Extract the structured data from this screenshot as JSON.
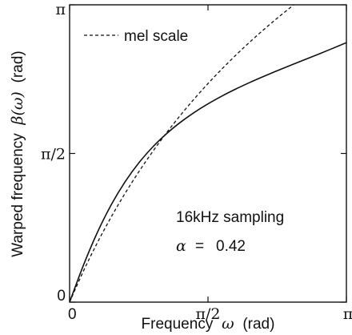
{
  "chart_data": {
    "type": "line",
    "xlabel_prefix": "Frequency",
    "xlabel_symbol": "ω",
    "xlabel_unit": "(rad)",
    "ylabel_prefix": "Warped frequency",
    "ylabel_symbol": "β(ω)",
    "ylabel_unit": "(rad)",
    "xlim": [
      0,
      3.14159
    ],
    "ylim": [
      0,
      3.14159
    ],
    "x_ticks": [
      {
        "value": 0,
        "label": "0"
      },
      {
        "value": 1.5708,
        "label": "π/2"
      },
      {
        "value": 3.14159,
        "label": "π"
      }
    ],
    "y_ticks": [
      {
        "value": 0,
        "label": "0"
      },
      {
        "value": 1.5708,
        "label": "π/2"
      },
      {
        "value": 3.14159,
        "label": "π"
      }
    ],
    "grid": false,
    "legend": {
      "position": "top-left",
      "entries": [
        {
          "label": "mel scale",
          "style": "dashed"
        }
      ]
    },
    "annotations": {
      "sampling": "16kHz sampling",
      "alpha_symbol": "α",
      "alpha_eq": "=",
      "alpha_value": "0.42"
    },
    "series": [
      {
        "style": "solid",
        "x": [
          0,
          0.1571,
          0.3142,
          0.4712,
          0.6283,
          0.7854,
          0.9425,
          1.0996,
          1.2566,
          1.4137,
          1.5708,
          1.7279,
          1.885,
          2.042,
          2.1991,
          2.3562,
          2.5133,
          2.6704,
          2.8274,
          2.9845,
          3.1416
        ],
        "y": [
          0,
          0.3904,
          0.7345,
          1.0266,
          1.2698,
          1.4711,
          1.6385,
          1.7793,
          1.8994,
          2.0035,
          2.0952,
          2.177,
          2.2512,
          2.3197,
          2.3839,
          2.4451,
          2.5044,
          2.5628,
          2.6212,
          2.6806,
          2.7421
        ]
      },
      {
        "name": "mel scale",
        "style": "dashed",
        "x": [
          0,
          0.1571,
          0.3142,
          0.4712,
          0.6283,
          0.7854,
          0.9425,
          1.0996,
          1.2566,
          1.4137,
          1.5708,
          1.7279,
          1.885,
          2.042,
          2.1991,
          2.3562,
          2.5133,
          2.6704,
          2.8274,
          2.9845,
          3.1416
        ],
        "y": [
          0,
          0.3285,
          0.6262,
          0.8979,
          1.1471,
          1.377,
          1.5901,
          1.7883,
          1.9733,
          2.1467,
          2.3096,
          2.463,
          2.6081,
          2.7455,
          2.876,
          3.0003,
          3.1186,
          3.2318,
          3.34,
          3.4437,
          3.5433
        ]
      }
    ]
  }
}
